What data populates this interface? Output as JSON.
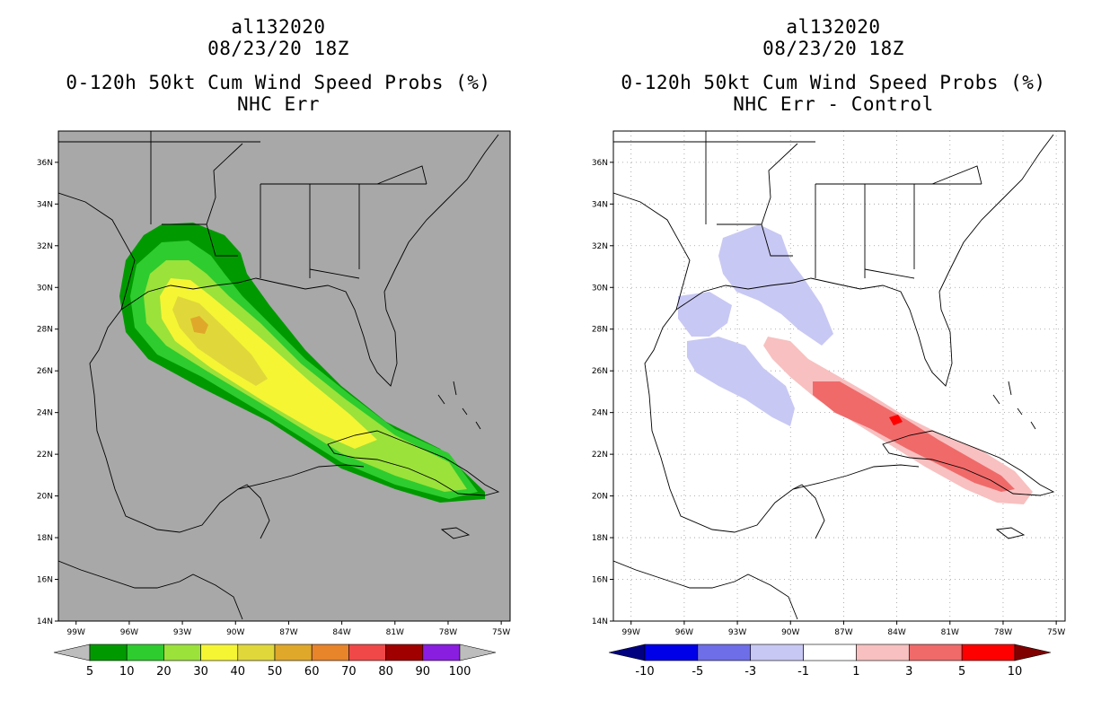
{
  "panels": [
    {
      "id": "left",
      "storm_id": "al132020",
      "date": "08/23/20 18Z",
      "product": "0-120h 50kt Cum Wind Speed Probs (%)",
      "subtitle": "NHC Err",
      "background": "#a8a8a8",
      "grid": false,
      "colorbar": {
        "labels": [
          "5",
          "10",
          "20",
          "30",
          "40",
          "50",
          "60",
          "70",
          "80",
          "90",
          "100"
        ],
        "colors": [
          "#009a00",
          "#2ecc2e",
          "#9be23a",
          "#f5f534",
          "#e0d83a",
          "#e0a82a",
          "#e8842a",
          "#f04848",
          "#a00000",
          "#8a1ee0"
        ],
        "end_low": "#bdbdbd",
        "end_high": "#bdbdbd"
      }
    },
    {
      "id": "right",
      "storm_id": "al132020",
      "date": "08/23/20 18Z",
      "product": "0-120h 50kt Cum Wind Speed Probs (%)",
      "subtitle": "NHC Err - Control",
      "background": "#ffffff",
      "grid": true,
      "colorbar": {
        "labels": [
          "-10",
          "-5",
          "-3",
          "-1",
          "1",
          "3",
          "5",
          "10"
        ],
        "colors": [
          "#0000e8",
          "#6e6ee8",
          "#c8c8f4",
          "#ffffff",
          "#f8c0c0",
          "#f06a6a",
          "#ff0000"
        ],
        "end_low": "#000080",
        "end_high": "#800000"
      }
    }
  ],
  "axes": {
    "lon_labels": [
      "99W",
      "96W",
      "93W",
      "90W",
      "87W",
      "84W",
      "81W",
      "78W",
      "75W"
    ],
    "lat_labels": [
      "14N",
      "16N",
      "18N",
      "20N",
      "22N",
      "24N",
      "26N",
      "28N",
      "30N",
      "32N",
      "34N",
      "36N"
    ],
    "lon_range": [
      -100,
      -74.5
    ],
    "lat_range": [
      14,
      37.5
    ]
  }
}
